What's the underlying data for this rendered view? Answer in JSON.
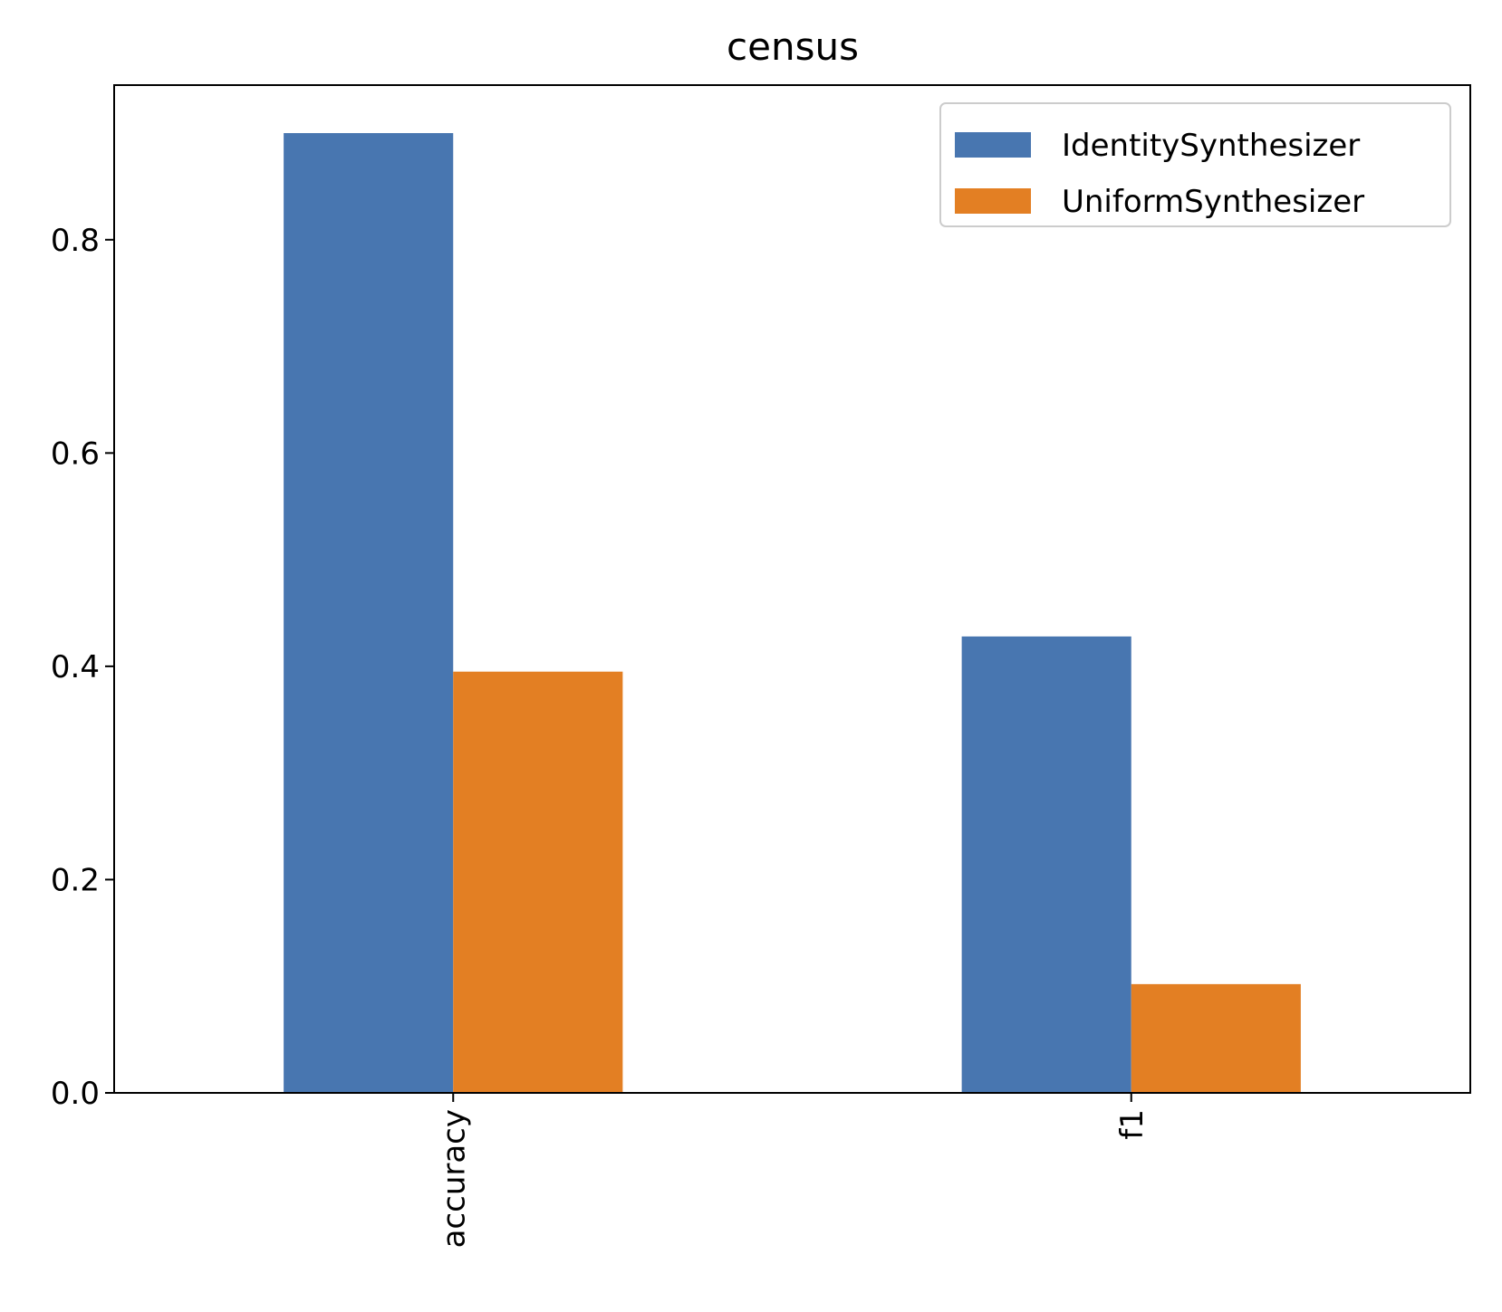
{
  "chart_data": {
    "type": "bar",
    "title": "census",
    "xlabel": "",
    "ylabel": "",
    "categories": [
      "accuracy",
      "f1"
    ],
    "series": [
      {
        "name": "IdentitySynthesizer",
        "color": "#4876b0",
        "values": [
          0.9,
          0.428
        ]
      },
      {
        "name": "UniformSynthesizer",
        "color": "#e37f23",
        "values": [
          0.395,
          0.102
        ]
      }
    ],
    "ylim": [
      0,
      0.945
    ],
    "yticks": [
      0.0,
      0.2,
      0.4,
      0.6,
      0.8
    ],
    "ytick_labels": [
      "0.0",
      "0.2",
      "0.4",
      "0.6",
      "0.8"
    ],
    "grid": false,
    "legend_position": "top-right"
  }
}
